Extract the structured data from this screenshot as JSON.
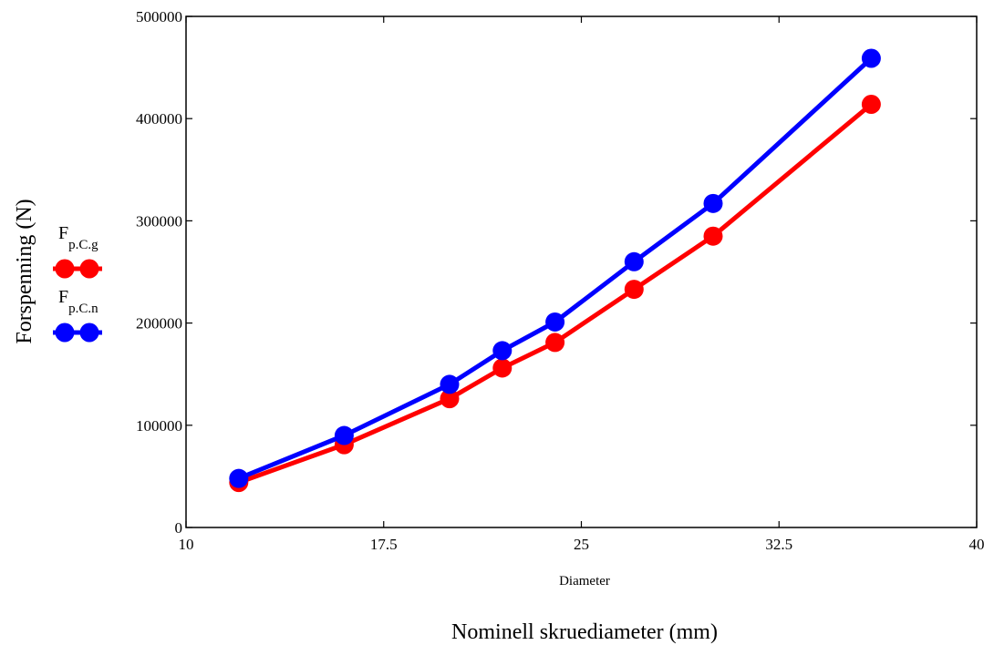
{
  "chart_data": {
    "type": "line",
    "title": "",
    "xlabel": "Diameter",
    "footer_label": "Nominell skruediameter (mm)",
    "ylabel": "Forspenning (N)",
    "xlim": [
      10,
      40
    ],
    "ylim": [
      0,
      500000
    ],
    "x_ticks": [
      "10",
      "17.5",
      "25",
      "32.5",
      "40"
    ],
    "x_tick_values": [
      10,
      17.5,
      25,
      32.5,
      40
    ],
    "y_ticks": [
      "0",
      "100000",
      "200000",
      "300000",
      "400000",
      "500000"
    ],
    "y_tick_values": [
      0,
      100000,
      200000,
      300000,
      400000,
      500000
    ],
    "grid": false,
    "legend_position": "left",
    "x": [
      12,
      16,
      20,
      22,
      24,
      27,
      30,
      36
    ],
    "series": [
      {
        "name_main": "F",
        "name_sub": "p.C.g",
        "color": "#ff0000",
        "values": [
          44000,
          81000,
          126000,
          156000,
          181000,
          233000,
          285000,
          414000
        ]
      },
      {
        "name_main": "F",
        "name_sub": "p.C.n",
        "color": "#0000ff",
        "values": [
          48000,
          90000,
          140000,
          173000,
          201000,
          260000,
          317000,
          459000
        ]
      }
    ]
  }
}
